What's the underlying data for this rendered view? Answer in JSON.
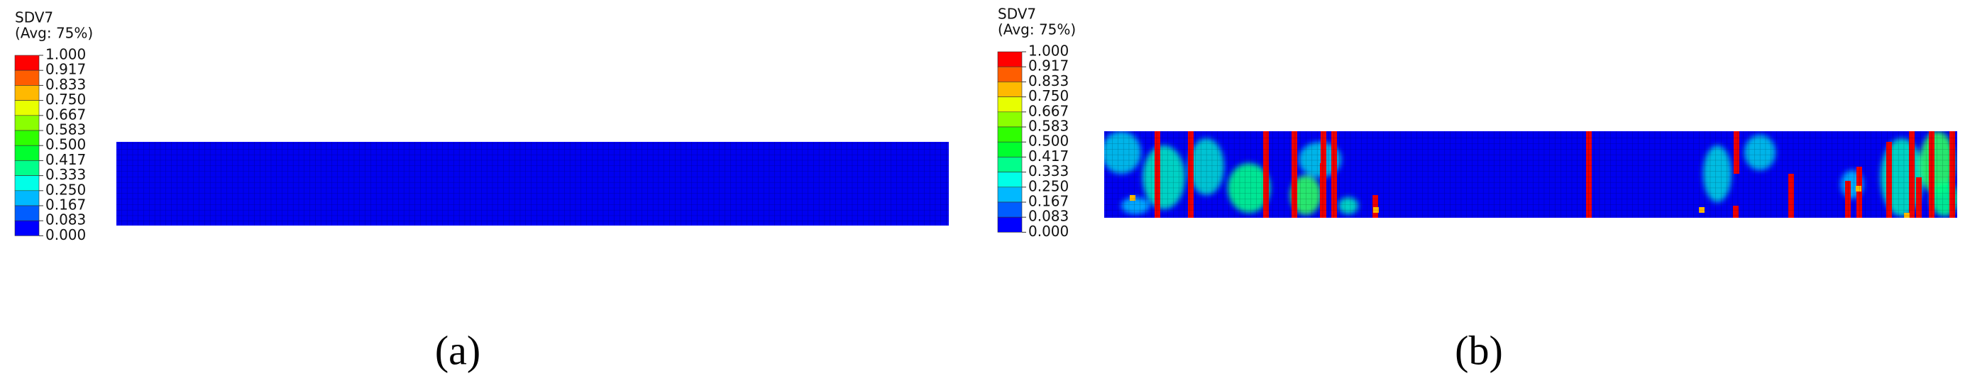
{
  "panels": [
    {
      "legend_title": "SDV7",
      "legend_subtitle": "(Avg: 75%)",
      "legend_labels": [
        "1.000",
        "0.917",
        "0.833",
        "0.750",
        "0.667",
        "0.583",
        "0.500",
        "0.417",
        "0.333",
        "0.250",
        "0.167",
        "0.083",
        "0.000"
      ],
      "caption": "(a)"
    },
    {
      "legend_title": "SDV7",
      "legend_subtitle": "(Avg: 75%)",
      "legend_labels": [
        "1.000",
        "0.917",
        "0.833",
        "0.750",
        "0.667",
        "0.583",
        "0.500",
        "0.417",
        "0.333",
        "0.250",
        "0.167",
        "0.083",
        "0.000"
      ],
      "caption": "(b)"
    }
  ],
  "legend_colors": [
    "#ff0000",
    "#ff5d00",
    "#ffb900",
    "#e8ff00",
    "#8bff00",
    "#2eff00",
    "#00ff2e",
    "#00ff8b",
    "#00ffe8",
    "#00b9ff",
    "#005dff",
    "#0000ff"
  ]
}
